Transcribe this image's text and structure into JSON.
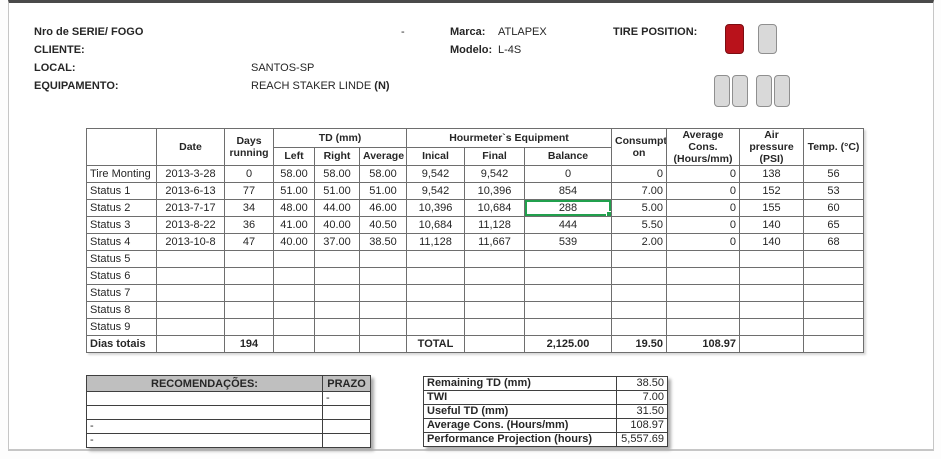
{
  "colors": {
    "tire_active": "#b9121b",
    "tire_inactive": "#d9d9d9",
    "selection_green": "#21a04d",
    "recommendation_header_bg": "#bfbfbf"
  },
  "header": {
    "fields": [
      {
        "label": "Nro de SERIE/ FOGO",
        "value": "",
        "dash": "-"
      },
      {
        "label": "CLIENTE:",
        "value": ""
      },
      {
        "label": "LOCAL:",
        "value": "SANTOS-SP"
      },
      {
        "label": "EQUIPAMENTO:",
        "value": "REACH STAKER LINDE ",
        "value_bold": "(N)"
      }
    ],
    "marca_label": "Marca:",
    "marca_value": "ATLAPEX",
    "modelo_label": "Modelo:",
    "modelo_value": "L-4S",
    "tire_position_label": "TIRE POSITION:"
  },
  "tire_position": {
    "front": [
      {
        "name": "front-left",
        "state": "active"
      },
      {
        "name": "front-right",
        "state": "inactive"
      }
    ],
    "rear": [
      {
        "name": "rear-left-outer",
        "state": "inactive"
      },
      {
        "name": "rear-left-inner",
        "state": "inactive"
      },
      {
        "name": "rear-right-inner",
        "state": "inactive"
      },
      {
        "name": "rear-right-outer",
        "state": "inactive"
      }
    ]
  },
  "table": {
    "header": {
      "date": "Date",
      "days": "Days\nrunning",
      "td_group": "TD (mm)",
      "left": "Left",
      "right": "Right",
      "average": "Average",
      "hour_group": "Hourmeter`s Equipment",
      "inical": "Inical",
      "final": "Final",
      "balance": "Balance",
      "consumption": "Consumpti\non",
      "avg_cons": "Average Cons.\n(Hours/mm)",
      "air": "Air pressure\n(PSI)",
      "temp": "Temp. (°C)"
    },
    "aligns": [
      "l",
      "c",
      "c",
      "c",
      "c",
      "c",
      "c",
      "c",
      "c",
      "r",
      "r",
      "c",
      "c"
    ],
    "rows": [
      [
        "Tire Monting",
        "2013-3-28",
        "0",
        "58.00",
        "58.00",
        "58.00",
        "9,542",
        "9,542",
        "0",
        "0",
        "0",
        "138",
        "56"
      ],
      [
        "Status 1",
        "2013-6-13",
        "77",
        "51.00",
        "51.00",
        "51.00",
        "9,542",
        "10,396",
        "854",
        "7.00",
        "0",
        "152",
        "53"
      ],
      [
        "Status 2",
        "2013-7-17",
        "34",
        "48.00",
        "44.00",
        "46.00",
        "10,396",
        "10,684",
        "288",
        "5.00",
        "0",
        "155",
        "60"
      ],
      [
        "Status 3",
        "2013-8-22",
        "36",
        "41.00",
        "40.00",
        "40.50",
        "10,684",
        "11,128",
        "444",
        "5.50",
        "0",
        "140",
        "65"
      ],
      [
        "Status 4",
        "2013-10-8",
        "47",
        "40.00",
        "37.00",
        "38.50",
        "11,128",
        "11,667",
        "539",
        "2.00",
        "0",
        "140",
        "68"
      ],
      [
        "Status 5",
        "",
        "",
        "",
        "",
        "",
        "",
        "",
        "",
        "",
        "",
        "",
        ""
      ],
      [
        "Status 6",
        "",
        "",
        "",
        "",
        "",
        "",
        "",
        "",
        "",
        "",
        "",
        ""
      ],
      [
        "Status 7",
        "",
        "",
        "",
        "",
        "",
        "",
        "",
        "",
        "",
        "",
        "",
        ""
      ],
      [
        "Status 8",
        "",
        "",
        "",
        "",
        "",
        "",
        "",
        "",
        "",
        "",
        "",
        ""
      ],
      [
        "Status 9",
        "",
        "",
        "",
        "",
        "",
        "",
        "",
        "",
        "",
        "",
        "",
        ""
      ]
    ],
    "totals_row": [
      "Dias totais",
      "",
      "194",
      "",
      "",
      "",
      "TOTAL",
      "",
      "2,125.00",
      "19.50",
      "108.97",
      "",
      ""
    ],
    "selected_cell": {
      "row": 2,
      "col": 8
    }
  },
  "recommendations": {
    "header": "RECOMENDAÇÕES:",
    "prazo_header": "PRAZO",
    "rows": [
      {
        "rec": "",
        "prazo": "-"
      },
      {
        "rec": "",
        "prazo": ""
      },
      {
        "rec": "-",
        "prazo": ""
      },
      {
        "rec": "-",
        "prazo": ""
      }
    ]
  },
  "summary": {
    "rows": [
      {
        "label": "Remaining TD (mm)",
        "value": "38.50"
      },
      {
        "label": "TWI",
        "value": "7.00"
      },
      {
        "label": "Useful TD (mm)",
        "value": "31.50"
      },
      {
        "label": "Average Cons. (Hours/mm)",
        "value": "108.97"
      },
      {
        "label": "Performance Projection (hours)",
        "value": "5,557.69"
      }
    ]
  }
}
